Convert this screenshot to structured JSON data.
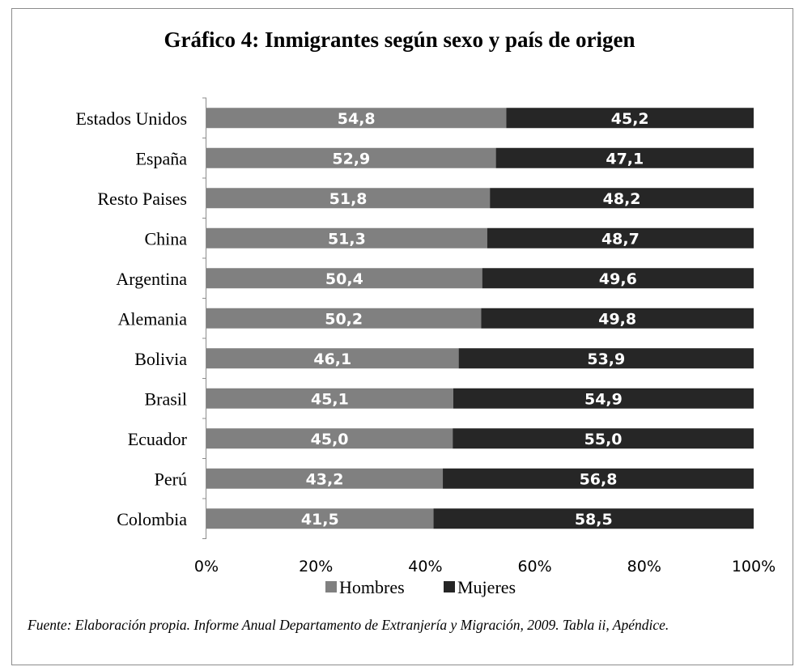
{
  "colors": {
    "hombres": "#808080",
    "mujeres": "#262626"
  },
  "chart_data": {
    "type": "bar",
    "orientation": "horizontal",
    "stacked": "percent",
    "title": "Gráfico 4: Inmigrantes según  sexo y país de origen",
    "categories": [
      "Estados Unidos",
      "España",
      "Resto Paises",
      "China",
      "Argentina",
      "Alemania",
      "Bolivia",
      "Brasil",
      "Ecuador",
      "Perú",
      "Colombia"
    ],
    "series": [
      {
        "name": "Hombres",
        "values": [
          54.8,
          52.9,
          51.8,
          51.3,
          50.4,
          50.2,
          46.1,
          45.1,
          45.0,
          43.2,
          41.5
        ],
        "labels": [
          "54,8",
          "52,9",
          "51,8",
          "51,3",
          "50,4",
          "50,2",
          "46,1",
          "45,1",
          "45,0",
          "43,2",
          "41,5"
        ]
      },
      {
        "name": "Mujeres",
        "values": [
          45.2,
          47.1,
          48.2,
          48.7,
          49.6,
          49.8,
          53.9,
          54.9,
          55.0,
          56.8,
          58.5
        ],
        "labels": [
          "45,2",
          "47,1",
          "48,2",
          "48,7",
          "49,6",
          "49,8",
          "53,9",
          "54,9",
          "55,0",
          "56,8",
          "58,5"
        ]
      }
    ],
    "xticks": [
      "0%",
      "20%",
      "40%",
      "60%",
      "80%",
      "100%"
    ],
    "xlim": [
      0,
      100
    ],
    "legend_position": "bottom",
    "grid": false
  },
  "source_note": "Fuente: Elaboración propia. Informe Anual Departamento de Extranjería y Migración, 2009. Tabla ii, Apéndice."
}
